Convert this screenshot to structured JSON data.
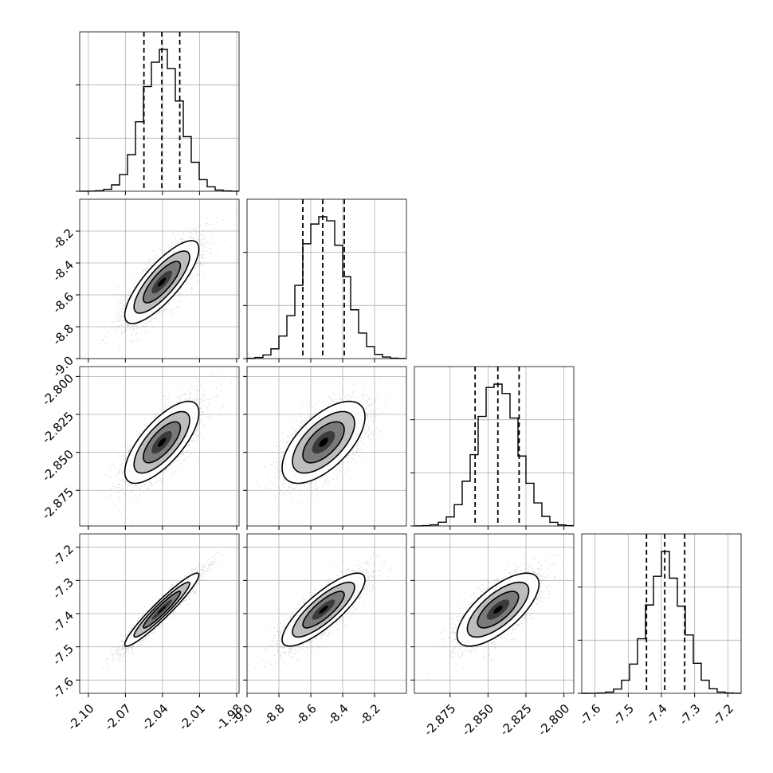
{
  "chart_data": {
    "type": "corner",
    "params": [
      {
        "index": 0,
        "range": [
          -2.107,
          -1.978
        ],
        "ticks": [
          "-2.10",
          "-2.07",
          "-2.04",
          "-2.01",
          "-1.98"
        ],
        "tick_values": [
          -2.1,
          -2.07,
          -2.04,
          -2.01,
          -1.98
        ],
        "mean": -2.0405,
        "sd": 0.015,
        "quantiles": [
          -2.055,
          -2.0405,
          -2.026
        ]
      },
      {
        "index": 1,
        "range": [
          -9.0,
          -8.0
        ],
        "ticks": [
          "-9.0",
          "-8.8",
          "-8.6",
          "-8.4",
          "-8.2"
        ],
        "tick_values": [
          -9.0,
          -8.8,
          -8.6,
          -8.4,
          -8.2
        ],
        "mean": -8.52,
        "sd": 0.13,
        "quantiles": [
          -8.65,
          -8.525,
          -8.39
        ]
      },
      {
        "index": 2,
        "range": [
          -2.8985,
          -2.7935
        ],
        "ticks": [
          "-2.875",
          "-2.850",
          "-2.825",
          "-2.800"
        ],
        "tick_values": [
          -2.875,
          -2.85,
          -2.825,
          -2.8
        ],
        "mean": -2.8434,
        "sd": 0.0135,
        "quantiles": [
          -2.8585,
          -2.8435,
          -2.8295
        ]
      },
      {
        "index": 3,
        "range": [
          -7.64,
          -7.16
        ],
        "ticks": [
          "-7.6",
          "-7.5",
          "-7.4",
          "-7.3",
          "-7.2"
        ],
        "tick_values": [
          -7.6,
          -7.5,
          -7.4,
          -7.3,
          -7.2
        ],
        "mean": -7.388,
        "sd": 0.055,
        "quantiles": [
          -7.445,
          -7.39,
          -7.33
        ]
      }
    ],
    "correlations": [
      [
        1.0,
        0.8,
        0.72,
        0.95
      ],
      [
        0.8,
        1.0,
        0.62,
        0.82
      ],
      [
        0.72,
        0.62,
        1.0,
        0.7
      ],
      [
        0.95,
        0.82,
        0.7,
        1.0
      ]
    ],
    "histogram_bins": 20,
    "samples_per_panel": 3000,
    "contour_levels_sigma": [
      1.0,
      1.5,
      2.0
    ],
    "grid": true,
    "dashed_quantile_lines": true
  }
}
